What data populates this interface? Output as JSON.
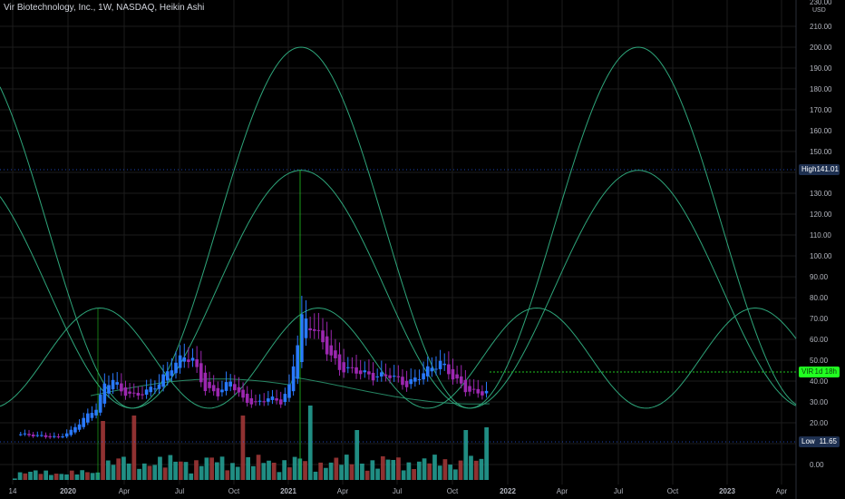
{
  "header": {
    "title": "Vir Biotechnology, Inc., 1W, NASDAQ, Heikin Ashi"
  },
  "price_axis": {
    "currency": "USD",
    "labels": [
      "230.00",
      "210.00",
      "200.00",
      "190.00",
      "180.00",
      "170.00",
      "160.00",
      "150.00",
      "140.00",
      "130.00",
      "120.00",
      "110.00",
      "100.00",
      "90.00",
      "80.00",
      "70.00",
      "60.00",
      "50.00",
      "40.00",
      "30.00",
      "20.00",
      "10.00",
      "0.00"
    ]
  },
  "markers": {
    "high": {
      "label": "High",
      "value": "141.01"
    },
    "last": {
      "label": "VIR",
      "value": "1d 18h"
    },
    "low": {
      "label": "Low",
      "value": "11.65"
    }
  },
  "colors": {
    "background": "#000000",
    "grid": "#1c1c1c",
    "cycle": "#2ea57a",
    "candle_up": "#2979ff",
    "candle_down": "#9c27b0",
    "volume_up": "#26a69a",
    "volume_down": "#a83a3a",
    "marker_line": "#21c421"
  },
  "chart_data": {
    "type": "candlestick",
    "title": "Vir Biotechnology, Inc., 1W, NASDAQ, Heikin Ashi",
    "x_tick_labels": [
      "14",
      "2020",
      "Apr",
      "Jul",
      "Oct",
      "2021",
      "Apr",
      "Jul",
      "Oct",
      "2022",
      "Apr",
      "Jul",
      "Oct",
      "2023",
      "Apr"
    ],
    "y_unit": "USD",
    "ylim": [
      0,
      230
    ],
    "grid": true,
    "price_series": [
      [
        "2019-10-14",
        14.5
      ],
      [
        "2019-11-04",
        14.0
      ],
      [
        "2019-11-25",
        13.5
      ],
      [
        "2019-12-16",
        13.0
      ],
      [
        "2020-01-06",
        16.0
      ],
      [
        "2020-01-27",
        22.0
      ],
      [
        "2020-02-17",
        27.0
      ],
      [
        "2020-03-02",
        38.0
      ],
      [
        "2020-03-16",
        41.0
      ],
      [
        "2020-03-30",
        35.0
      ],
      [
        "2020-04-20",
        33.0
      ],
      [
        "2020-05-11",
        35.0
      ],
      [
        "2020-06-01",
        39.0
      ],
      [
        "2020-06-22",
        47.0
      ],
      [
        "2020-07-13",
        52.0
      ],
      [
        "2020-07-27",
        50.0
      ],
      [
        "2020-08-17",
        36.0
      ],
      [
        "2020-09-07",
        34.0
      ],
      [
        "2020-09-28",
        40.0
      ],
      [
        "2020-10-19",
        31.0
      ],
      [
        "2020-11-09",
        29.0
      ],
      [
        "2020-11-30",
        32.0
      ],
      [
        "2020-12-21",
        30.0
      ],
      [
        "2021-01-04",
        37.0
      ],
      [
        "2021-01-25",
        70.0
      ],
      [
        "2021-02-15",
        65.0
      ],
      [
        "2021-03-08",
        55.0
      ],
      [
        "2021-03-29",
        46.0
      ],
      [
        "2021-04-26",
        45.0
      ],
      [
        "2021-05-24",
        42.0
      ],
      [
        "2021-06-21",
        43.0
      ],
      [
        "2021-07-19",
        38.0
      ],
      [
        "2021-08-16",
        44.0
      ],
      [
        "2021-09-13",
        49.0
      ],
      [
        "2021-10-04",
        42.0
      ],
      [
        "2021-10-25",
        36.0
      ],
      [
        "2021-11-15",
        34.0
      ],
      [
        "2021-11-29",
        35.0
      ]
    ],
    "cycle_levels": {
      "large_peak": 200,
      "mid_peak": 141,
      "small_peak": 75,
      "trough": 27
    },
    "high": 141.01,
    "low": 11.65,
    "volume_bars": 92
  }
}
